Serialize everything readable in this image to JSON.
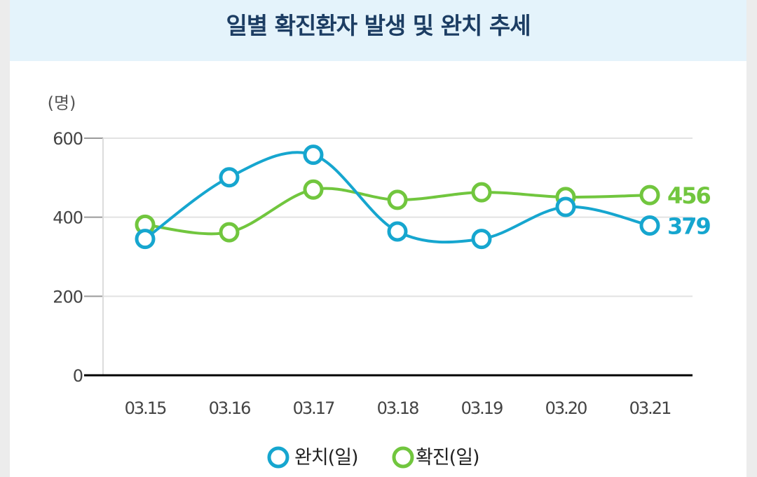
{
  "header": {
    "title": "일별 확진환자 발생 및 완치 추세"
  },
  "colors": {
    "recovered": "#16a6cf",
    "confirmed": "#71c63e",
    "axis": "#000000",
    "grid": "#e2e2e2",
    "tick_text": "#444444"
  },
  "chart_data": {
    "type": "line",
    "title": "일별 확진환자 발생 및 완치 추세",
    "unit": "(명)",
    "categories": [
      "03.15",
      "03.16",
      "03.17",
      "03.18",
      "03.19",
      "03.20",
      "03.21"
    ],
    "y_ticks": [
      "0",
      "200",
      "400",
      "600"
    ],
    "ylim": [
      0,
      600
    ],
    "grid": true,
    "legend_position": "bottom",
    "series": [
      {
        "name": "완치(일)",
        "color": "#16a6cf",
        "values": [
          345,
          501,
          558,
          364,
          345,
          426,
          379
        ],
        "end_label": "379"
      },
      {
        "name": "확진(일)",
        "color": "#71c63e",
        "values": [
          381,
          362,
          470,
          444,
          463,
          451,
          456
        ],
        "end_label": "456"
      }
    ]
  }
}
